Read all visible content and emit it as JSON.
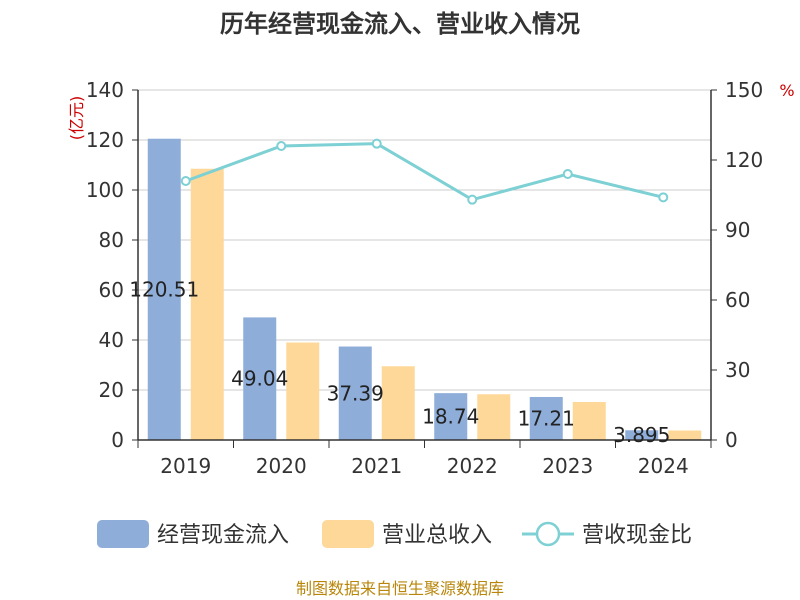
{
  "chart_data": {
    "type": "bar",
    "title": "历年经营现金流入、营业收入情况",
    "categories": [
      "2019",
      "2020",
      "2021",
      "2022",
      "2023",
      "2024"
    ],
    "series": [
      {
        "name": "经营现金流入",
        "type": "bar",
        "axis": "left",
        "color": "#8eadd9",
        "values": [
          120.51,
          49.04,
          37.39,
          18.74,
          17.21,
          3.895
        ],
        "labels": [
          "120.51",
          "49.04",
          "37.39",
          "18.74",
          "17.21",
          "3.895"
        ]
      },
      {
        "name": "营业总收入",
        "type": "bar",
        "axis": "left",
        "color": "#fdd899",
        "values": [
          108.5,
          39.0,
          29.5,
          18.3,
          15.2,
          3.8
        ]
      },
      {
        "name": "营收现金比",
        "type": "line",
        "axis": "right",
        "color": "#7dd0d4",
        "values": [
          111,
          126,
          127,
          103,
          114,
          104
        ]
      }
    ],
    "left_axis": {
      "unit": "(亿元)",
      "ylim": [
        0,
        140
      ],
      "ticks": [
        0,
        20,
        40,
        60,
        80,
        100,
        120,
        140
      ]
    },
    "right_axis": {
      "unit": "%",
      "ylim": [
        0,
        150
      ],
      "ticks": [
        0,
        30,
        60,
        90,
        120,
        150
      ]
    },
    "legend_position": "bottom"
  },
  "source": "制图数据来自恒生聚源数据库"
}
